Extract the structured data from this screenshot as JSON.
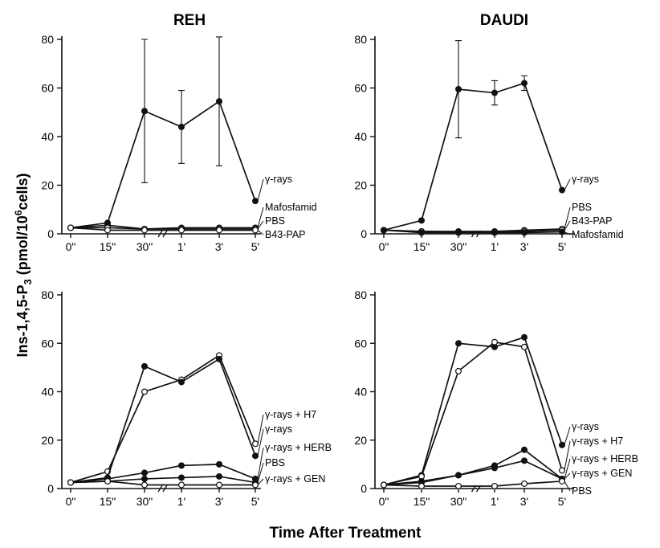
{
  "figure": {
    "ylabel": "Ins-1,4,5-P3 (pmol/10^6cells)",
    "xlabel": "Time After Treatment"
  },
  "chart_data": [
    {
      "type": "line",
      "title": "REH",
      "categories": [
        "0\"",
        "15\"",
        "30\"",
        "1'",
        "3'",
        "5'"
      ],
      "ylim": [
        0,
        80
      ],
      "yticks": [
        0,
        20,
        40,
        60,
        80
      ],
      "series": [
        {
          "name": "γ-rays",
          "marker": "filled",
          "values": [
            2.5,
            4.5,
            50.5,
            44,
            54.5,
            13.5
          ],
          "errors": [
            0,
            0,
            29.5,
            15,
            26.5,
            0
          ]
        },
        {
          "name": "Mafosfamid",
          "marker": "filled",
          "values": [
            2.5,
            3.5,
            2,
            2.5,
            2.5,
            2.5
          ]
        },
        {
          "name": "PBS",
          "marker": "open",
          "values": [
            2.5,
            2.5,
            2,
            2,
            2,
            2
          ]
        },
        {
          "name": "B43-PAP",
          "marker": "open",
          "values": [
            2.5,
            1.5,
            1.5,
            1.5,
            1.5,
            1.5
          ]
        }
      ]
    },
    {
      "type": "line",
      "title": "DAUDI",
      "categories": [
        "0\"",
        "15\"",
        "30\"",
        "1'",
        "3'",
        "5'"
      ],
      "ylim": [
        0,
        80
      ],
      "yticks": [
        0,
        20,
        40,
        60,
        80
      ],
      "series": [
        {
          "name": "γ-rays",
          "marker": "filled",
          "values": [
            1.5,
            5.5,
            59.5,
            58,
            62,
            18
          ],
          "errors": [
            0,
            0,
            20,
            5,
            3,
            0
          ]
        },
        {
          "name": "PBS",
          "marker": "open",
          "values": [
            1.5,
            1,
            1,
            1,
            1.5,
            2
          ]
        },
        {
          "name": "B43-PAP",
          "marker": "open",
          "values": [
            1.5,
            1,
            0.8,
            0.8,
            1,
            1.5
          ]
        },
        {
          "name": "Mafosfamid",
          "marker": "filled",
          "values": [
            1.5,
            0.5,
            0.5,
            0.5,
            0.5,
            0.8
          ]
        }
      ]
    },
    {
      "type": "line",
      "title": "",
      "categories": [
        "0\"",
        "15\"",
        "30\"",
        "1'",
        "3'",
        "5'"
      ],
      "ylim": [
        0,
        80
      ],
      "yticks": [
        0,
        20,
        40,
        60,
        80
      ],
      "series": [
        {
          "name": "γ-rays + H7",
          "marker": "open",
          "values": [
            2.5,
            7,
            40,
            45,
            55,
            18.5
          ]
        },
        {
          "name": "γ-rays",
          "marker": "filled",
          "values": [
            2.5,
            4.5,
            50.5,
            44,
            53.5,
            13.5
          ]
        },
        {
          "name": "γ-rays + HERB",
          "marker": "filled",
          "values": [
            2.5,
            4,
            6.5,
            9.5,
            10,
            4
          ]
        },
        {
          "name": "PBS",
          "marker": "filled",
          "values": [
            2.5,
            3,
            4,
            4.5,
            5,
            2.5
          ]
        },
        {
          "name": "γ-rays + GEN",
          "marker": "open",
          "values": [
            2.5,
            3,
            1.5,
            1.5,
            1.5,
            1.5
          ]
        }
      ]
    },
    {
      "type": "line",
      "title": "",
      "categories": [
        "0\"",
        "15\"",
        "30\"",
        "1'",
        "3'",
        "5'"
      ],
      "ylim": [
        0,
        80
      ],
      "yticks": [
        0,
        20,
        40,
        60,
        80
      ],
      "series": [
        {
          "name": "γ-rays",
          "marker": "filled",
          "values": [
            1.5,
            5.5,
            60,
            58.5,
            62.5,
            18
          ]
        },
        {
          "name": "γ-rays + H7",
          "marker": "open",
          "values": [
            1.5,
            5,
            48.5,
            60.5,
            58.5,
            7.5
          ]
        },
        {
          "name": "γ-rays + HERB",
          "marker": "filled",
          "values": [
            1.5,
            3,
            5.5,
            9.5,
            16,
            4
          ]
        },
        {
          "name": "γ-rays + GEN",
          "marker": "filled",
          "values": [
            1.5,
            2.5,
            5.5,
            8.5,
            11.5,
            4
          ]
        },
        {
          "name": "PBS",
          "marker": "open",
          "values": [
            1.5,
            1,
            1,
            1,
            2,
            3
          ]
        }
      ]
    }
  ]
}
